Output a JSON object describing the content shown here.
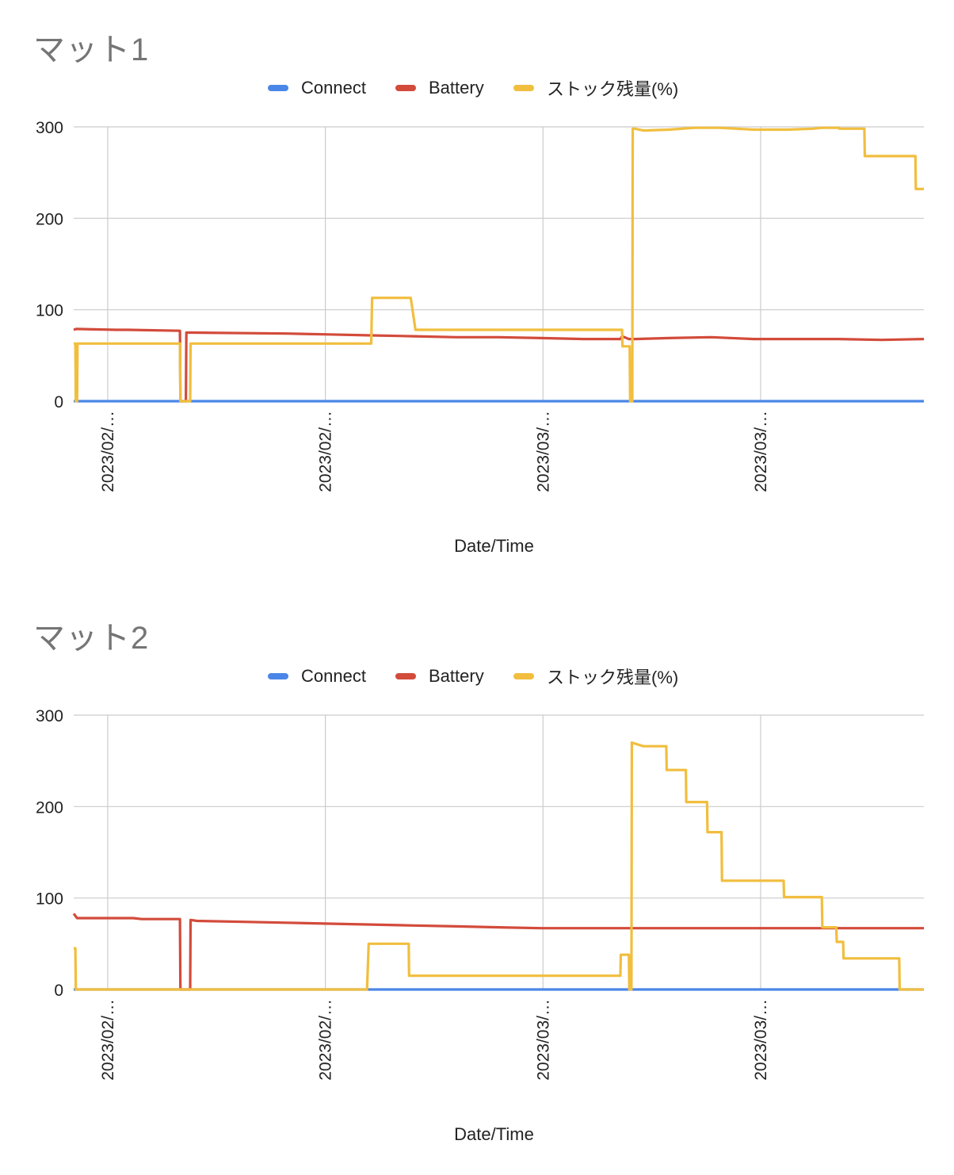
{
  "chart_data": [
    {
      "type": "line",
      "title": "マット1",
      "xlabel": "Date/Time",
      "ylabel": "",
      "ylim": [
        0,
        300
      ],
      "yticks": [
        0,
        100,
        200,
        300
      ],
      "x_tick_labels": [
        "2023/02/…",
        "2023/02/…",
        "2023/03/…",
        "2023/03/…"
      ],
      "x_tick_positions": [
        0.04,
        0.296,
        0.552,
        0.808
      ],
      "grid": true,
      "legend_position": "top",
      "series": [
        {
          "name": "Connect",
          "color": "#4a86e8",
          "x": [
            0,
            1
          ],
          "values": [
            0,
            0
          ]
        },
        {
          "name": "Battery",
          "color": "#d34b3b",
          "x": [
            0,
            0.003,
            0.05,
            0.063,
            0.0635,
            0.125,
            0.1255,
            0.132,
            0.1325,
            0.14,
            0.25,
            0.3,
            0.35,
            0.4,
            0.45,
            0.5,
            0.55,
            0.6,
            0.643,
            0.645,
            0.653,
            0.66,
            0.7,
            0.75,
            0.8,
            0.85,
            0.9,
            0.95,
            1
          ],
          "values": [
            78,
            79,
            78,
            78,
            78,
            77,
            0,
            0,
            75,
            75,
            74,
            73,
            72,
            71,
            70,
            70,
            69,
            68,
            68,
            71,
            68,
            68,
            69,
            70,
            68,
            68,
            68,
            67,
            68
          ]
        },
        {
          "name": "ストック残量(%)",
          "color": "#f1be3e",
          "x": [
            0,
            0.002,
            0.0025,
            0.004,
            0.0045,
            0.125,
            0.1255,
            0.137,
            0.1375,
            0.35,
            0.35,
            0.351,
            0.3515,
            0.396,
            0.3965,
            0.402,
            0.4025,
            0.645,
            0.6455,
            0.654,
            0.6545,
            0.657,
            0.6575,
            0.66,
            0.67,
            0.7,
            0.73,
            0.76,
            0.8,
            0.84,
            0.87,
            0.88,
            0.9,
            0.9005,
            0.93,
            0.9305,
            0.95,
            0.99,
            0.9905,
            1
          ],
          "values": [
            63,
            63,
            0,
            0,
            63,
            63,
            0,
            0,
            63,
            63,
            63,
            113,
            113,
            113,
            113,
            78,
            78,
            78,
            60,
            60,
            0,
            0,
            298,
            298,
            296,
            297,
            299,
            299,
            297,
            297,
            298,
            299,
            299,
            298,
            298,
            268,
            268,
            268,
            232,
            232
          ]
        }
      ]
    },
    {
      "type": "line",
      "title": "マット2",
      "xlabel": "Date/Time",
      "ylabel": "",
      "ylim": [
        0,
        300
      ],
      "yticks": [
        0,
        100,
        200,
        300
      ],
      "x_tick_labels": [
        "2023/02/…",
        "2023/02/…",
        "2023/03/…",
        "2023/03/…"
      ],
      "x_tick_positions": [
        0.04,
        0.296,
        0.552,
        0.808
      ],
      "grid": true,
      "legend_position": "top",
      "series": [
        {
          "name": "Connect",
          "color": "#4a86e8",
          "x": [
            0,
            1
          ],
          "values": [
            0,
            0
          ]
        },
        {
          "name": "Battery",
          "color": "#d34b3b",
          "x": [
            0,
            0.004,
            0.006,
            0.07,
            0.08,
            0.125,
            0.1255,
            0.137,
            0.1375,
            0.145,
            0.2,
            0.25,
            0.3,
            0.35,
            0.4,
            0.45,
            0.5,
            0.55,
            0.6,
            0.65,
            0.7,
            0.75,
            0.8,
            0.85,
            0.9,
            0.95,
            1
          ],
          "values": [
            83,
            78,
            78,
            78,
            77,
            77,
            0,
            0,
            76,
            75,
            74,
            73,
            72,
            71,
            70,
            69,
            68,
            67,
            67,
            67,
            67,
            67,
            67,
            67,
            67,
            67,
            67
          ]
        },
        {
          "name": "ストック残量(%)",
          "color": "#f1be3e",
          "x": [
            0,
            0.002,
            0.0025,
            0.345,
            0.345,
            0.347,
            0.3475,
            0.394,
            0.3945,
            0.643,
            0.6435,
            0.653,
            0.6535,
            0.656,
            0.6565,
            0.67,
            0.697,
            0.6975,
            0.72,
            0.7205,
            0.745,
            0.7455,
            0.762,
            0.7625,
            0.78,
            0.7805,
            0.835,
            0.8355,
            0.88,
            0.8805,
            0.897,
            0.8975,
            0.905,
            0.9055,
            0.971,
            0.9715,
            1
          ],
          "values": [
            45,
            45,
            0,
            0,
            0,
            50,
            50,
            50,
            15,
            15,
            38,
            38,
            0,
            0,
            270,
            266,
            266,
            240,
            240,
            205,
            205,
            172,
            172,
            119,
            119,
            119,
            119,
            101,
            101,
            68,
            68,
            52,
            52,
            34,
            34,
            0,
            0
          ]
        }
      ]
    }
  ]
}
